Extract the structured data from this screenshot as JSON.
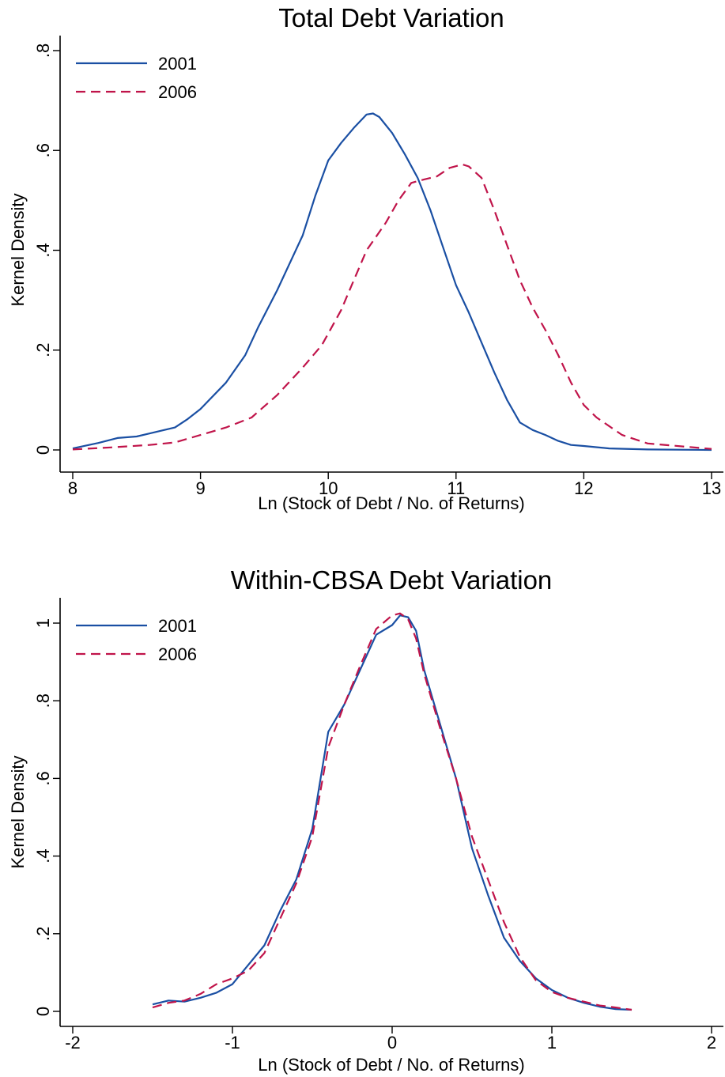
{
  "colors": {
    "series_2001": "#1a4fa3",
    "series_2006": "#c0144a",
    "axis": "#000000"
  },
  "chart_data": [
    {
      "type": "line",
      "title": "Total Debt Variation",
      "xlabel": "Ln (Stock of Debt / No. of Returns)",
      "ylabel": "Kernel Density",
      "xlim": [
        8,
        13
      ],
      "ylim": [
        0,
        0.8
      ],
      "xticks": [
        8,
        9,
        10,
        11,
        12,
        13
      ],
      "xtick_labels": [
        "8",
        "9",
        "10",
        "11",
        "12",
        "13"
      ],
      "yticks": [
        0,
        0.2,
        0.4,
        0.6,
        0.8
      ],
      "ytick_labels": [
        "0",
        ".2",
        ".4",
        ".6",
        ".8"
      ],
      "legend_position": "top-left",
      "series": [
        {
          "name": "2001",
          "style": "solid",
          "color": "#1a4fa3",
          "x": [
            8.0,
            8.2,
            8.35,
            8.5,
            8.6,
            8.8,
            8.9,
            9.0,
            9.2,
            9.35,
            9.45,
            9.6,
            9.8,
            9.9,
            10.0,
            10.1,
            10.2,
            10.3,
            10.35,
            10.4,
            10.5,
            10.6,
            10.7,
            10.8,
            10.9,
            11.0,
            11.1,
            11.2,
            11.3,
            11.4,
            11.5,
            11.6,
            11.7,
            11.8,
            11.9,
            12.0,
            12.2,
            12.5,
            13.0
          ],
          "y": [
            0.003,
            0.014,
            0.024,
            0.027,
            0.033,
            0.045,
            0.062,
            0.082,
            0.135,
            0.19,
            0.245,
            0.32,
            0.43,
            0.51,
            0.58,
            0.615,
            0.645,
            0.672,
            0.674,
            0.667,
            0.635,
            0.592,
            0.545,
            0.48,
            0.405,
            0.33,
            0.275,
            0.215,
            0.155,
            0.1,
            0.055,
            0.04,
            0.03,
            0.018,
            0.01,
            0.008,
            0.003,
            0.001,
            0.0
          ]
        },
        {
          "name": "2006",
          "style": "dashed",
          "color": "#c0144a",
          "x": [
            8.0,
            8.3,
            8.6,
            8.8,
            9.0,
            9.2,
            9.4,
            9.6,
            9.8,
            9.95,
            10.1,
            10.2,
            10.3,
            10.45,
            10.55,
            10.65,
            10.75,
            10.85,
            10.95,
            11.05,
            11.1,
            11.2,
            11.3,
            11.4,
            11.5,
            11.6,
            11.7,
            11.8,
            11.9,
            12.0,
            12.1,
            12.3,
            12.5,
            13.0
          ],
          "y": [
            0.001,
            0.005,
            0.01,
            0.015,
            0.03,
            0.045,
            0.065,
            0.11,
            0.165,
            0.21,
            0.28,
            0.34,
            0.4,
            0.455,
            0.5,
            0.535,
            0.542,
            0.548,
            0.565,
            0.572,
            0.568,
            0.545,
            0.48,
            0.41,
            0.34,
            0.285,
            0.24,
            0.19,
            0.135,
            0.09,
            0.065,
            0.03,
            0.013,
            0.002
          ]
        }
      ]
    },
    {
      "type": "line",
      "title": "Within-CBSA Debt Variation",
      "xlabel": "Ln (Stock of Debt / No. of Returns)",
      "ylabel": "Kernel Density",
      "xlim": [
        -2,
        2
      ],
      "ylim": [
        0,
        1
      ],
      "xticks": [
        -2,
        -1,
        0,
        1,
        2
      ],
      "xtick_labels": [
        "-2",
        "-1",
        "0",
        "1",
        "2"
      ],
      "yticks": [
        0,
        0.2,
        0.4,
        0.6,
        0.8,
        1
      ],
      "ytick_labels": [
        "0",
        ".2",
        ".4",
        ".6",
        ".8",
        "1"
      ],
      "legend_position": "top-left",
      "series": [
        {
          "name": "2001",
          "style": "solid",
          "color": "#1a4fa3",
          "x": [
            -1.5,
            -1.4,
            -1.3,
            -1.2,
            -1.1,
            -1.0,
            -0.9,
            -0.8,
            -0.7,
            -0.6,
            -0.5,
            -0.4,
            -0.3,
            -0.2,
            -0.1,
            0.0,
            0.05,
            0.1,
            0.15,
            0.2,
            0.3,
            0.4,
            0.5,
            0.6,
            0.7,
            0.8,
            0.9,
            1.0,
            1.1,
            1.2,
            1.3,
            1.4,
            1.5
          ],
          "y": [
            0.018,
            0.028,
            0.025,
            0.035,
            0.048,
            0.07,
            0.12,
            0.17,
            0.26,
            0.34,
            0.47,
            0.72,
            0.79,
            0.88,
            0.97,
            0.995,
            1.02,
            1.015,
            0.98,
            0.88,
            0.74,
            0.6,
            0.42,
            0.3,
            0.19,
            0.13,
            0.085,
            0.055,
            0.035,
            0.022,
            0.012,
            0.006,
            0.004
          ]
        },
        {
          "name": "2006",
          "style": "dashed",
          "color": "#c0144a",
          "x": [
            -1.5,
            -1.4,
            -1.3,
            -1.2,
            -1.1,
            -1.0,
            -0.9,
            -0.8,
            -0.7,
            -0.6,
            -0.5,
            -0.4,
            -0.3,
            -0.2,
            -0.1,
            0.0,
            0.05,
            0.1,
            0.15,
            0.2,
            0.3,
            0.4,
            0.5,
            0.6,
            0.7,
            0.8,
            0.9,
            1.0,
            1.1,
            1.2,
            1.3,
            1.4,
            1.5
          ],
          "y": [
            0.01,
            0.022,
            0.028,
            0.045,
            0.07,
            0.085,
            0.105,
            0.15,
            0.24,
            0.33,
            0.45,
            0.68,
            0.79,
            0.89,
            0.985,
            1.02,
            1.025,
            1.01,
            0.96,
            0.87,
            0.73,
            0.6,
            0.45,
            0.34,
            0.23,
            0.14,
            0.08,
            0.05,
            0.035,
            0.025,
            0.015,
            0.01,
            0.004
          ]
        }
      ]
    }
  ]
}
